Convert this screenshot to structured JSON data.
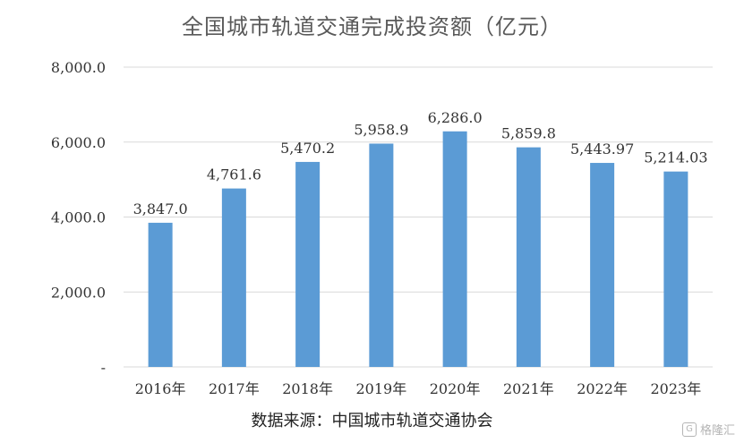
{
  "chart_data": {
    "type": "bar",
    "title": "全国城市轨道交通完成投资额（亿元）",
    "categories": [
      "2016年",
      "2017年",
      "2018年",
      "2019年",
      "2020年",
      "2021年",
      "2022年",
      "2023年"
    ],
    "values": [
      3847.0,
      4761.6,
      5470.2,
      5958.9,
      6286.0,
      5859.8,
      5443.97,
      5214.03
    ],
    "data_labels": [
      "3,847.0",
      "4,761.6",
      "5,470.2",
      "5,958.9",
      "6,286.0",
      "5,859.8",
      "5,443.97",
      "5,214.03"
    ],
    "ylim": [
      0,
      8000
    ],
    "yticks": [
      0,
      2000,
      4000,
      6000,
      8000
    ],
    "ytick_labels": [
      "-",
      "2,000.0",
      "4,000.0",
      "6,000.0",
      "8,000.0"
    ],
    "xlabel": "",
    "ylabel": "",
    "grid": true,
    "legend": "none",
    "bar_color": "#5b9bd5",
    "grid_color": "#d9d9d9"
  },
  "source_note": "数据来源：中国城市轨道交通协会",
  "watermark": {
    "text": "格隆汇",
    "icon": "glh-logo-icon"
  }
}
